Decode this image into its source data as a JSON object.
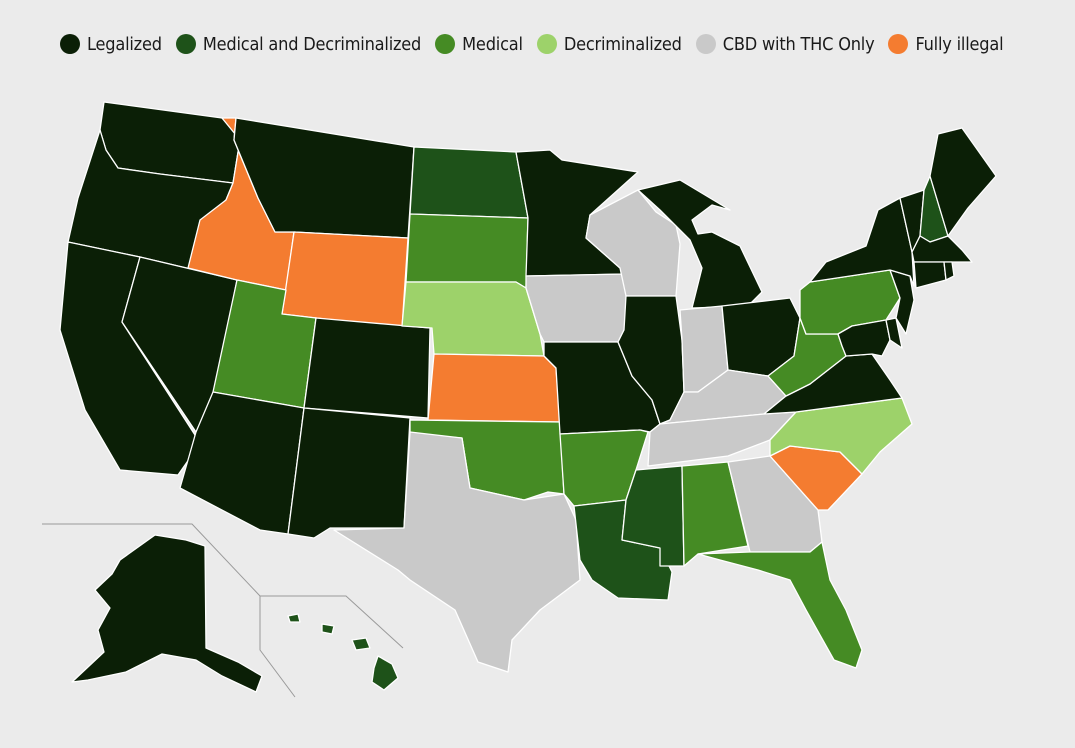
{
  "legend": {
    "items": [
      {
        "key": "legalized",
        "label": "Legalized",
        "color": "#0b1f06"
      },
      {
        "key": "med_decrim",
        "label": "Medical and Decriminalized",
        "color": "#1e5219"
      },
      {
        "key": "medical",
        "label": "Medical",
        "color": "#458b24"
      },
      {
        "key": "decrim",
        "label": "Decriminalized",
        "color": "#9dd26a"
      },
      {
        "key": "cbd",
        "label": "CBD with THC Only",
        "color": "#c9c9c9"
      },
      {
        "key": "illegal",
        "label": "Fully illegal",
        "color": "#f47c30"
      }
    ]
  },
  "colors": {
    "legalized": "#0b1f06",
    "med_decrim": "#1e5219",
    "medical": "#458b24",
    "decrim": "#9dd26a",
    "cbd": "#c9c9c9",
    "illegal": "#f47c30",
    "background": "#ebebeb",
    "border": "#ffffff"
  },
  "states": [
    {
      "name": "Washington",
      "status": "legalized"
    },
    {
      "name": "Oregon",
      "status": "legalized"
    },
    {
      "name": "California",
      "status": "legalized"
    },
    {
      "name": "Nevada",
      "status": "legalized"
    },
    {
      "name": "Idaho",
      "status": "illegal"
    },
    {
      "name": "Montana",
      "status": "legalized"
    },
    {
      "name": "Wyoming",
      "status": "illegal"
    },
    {
      "name": "Utah",
      "status": "medical"
    },
    {
      "name": "Arizona",
      "status": "legalized"
    },
    {
      "name": "Colorado",
      "status": "legalized"
    },
    {
      "name": "New Mexico",
      "status": "legalized"
    },
    {
      "name": "North Dakota",
      "status": "med_decrim"
    },
    {
      "name": "South Dakota",
      "status": "medical"
    },
    {
      "name": "Nebraska",
      "status": "decrim"
    },
    {
      "name": "Kansas",
      "status": "illegal"
    },
    {
      "name": "Oklahoma",
      "status": "medical"
    },
    {
      "name": "Texas",
      "status": "cbd"
    },
    {
      "name": "Minnesota",
      "status": "legalized"
    },
    {
      "name": "Iowa",
      "status": "cbd"
    },
    {
      "name": "Missouri",
      "status": "legalized"
    },
    {
      "name": "Arkansas",
      "status": "medical"
    },
    {
      "name": "Louisiana",
      "status": "med_decrim"
    },
    {
      "name": "Wisconsin",
      "status": "cbd"
    },
    {
      "name": "Illinois",
      "status": "legalized"
    },
    {
      "name": "Michigan",
      "status": "legalized"
    },
    {
      "name": "Indiana",
      "status": "cbd"
    },
    {
      "name": "Ohio",
      "status": "legalized"
    },
    {
      "name": "Kentucky",
      "status": "cbd"
    },
    {
      "name": "Tennessee",
      "status": "cbd"
    },
    {
      "name": "Mississippi",
      "status": "med_decrim"
    },
    {
      "name": "Alabama",
      "status": "medical"
    },
    {
      "name": "Georgia",
      "status": "cbd"
    },
    {
      "name": "Florida",
      "status": "medical"
    },
    {
      "name": "South Carolina",
      "status": "illegal"
    },
    {
      "name": "North Carolina",
      "status": "decrim"
    },
    {
      "name": "Virginia",
      "status": "legalized"
    },
    {
      "name": "West Virginia",
      "status": "medical"
    },
    {
      "name": "Pennsylvania",
      "status": "medical"
    },
    {
      "name": "Maryland",
      "status": "legalized"
    },
    {
      "name": "Delaware",
      "status": "legalized"
    },
    {
      "name": "New Jersey",
      "status": "legalized"
    },
    {
      "name": "New York",
      "status": "legalized"
    },
    {
      "name": "Connecticut",
      "status": "legalized"
    },
    {
      "name": "Rhode Island",
      "status": "legalized"
    },
    {
      "name": "Massachusetts",
      "status": "legalized"
    },
    {
      "name": "Vermont",
      "status": "legalized"
    },
    {
      "name": "New Hampshire",
      "status": "med_decrim"
    },
    {
      "name": "Maine",
      "status": "legalized"
    },
    {
      "name": "Alaska",
      "status": "legalized"
    },
    {
      "name": "Hawaii",
      "status": "med_decrim"
    }
  ]
}
